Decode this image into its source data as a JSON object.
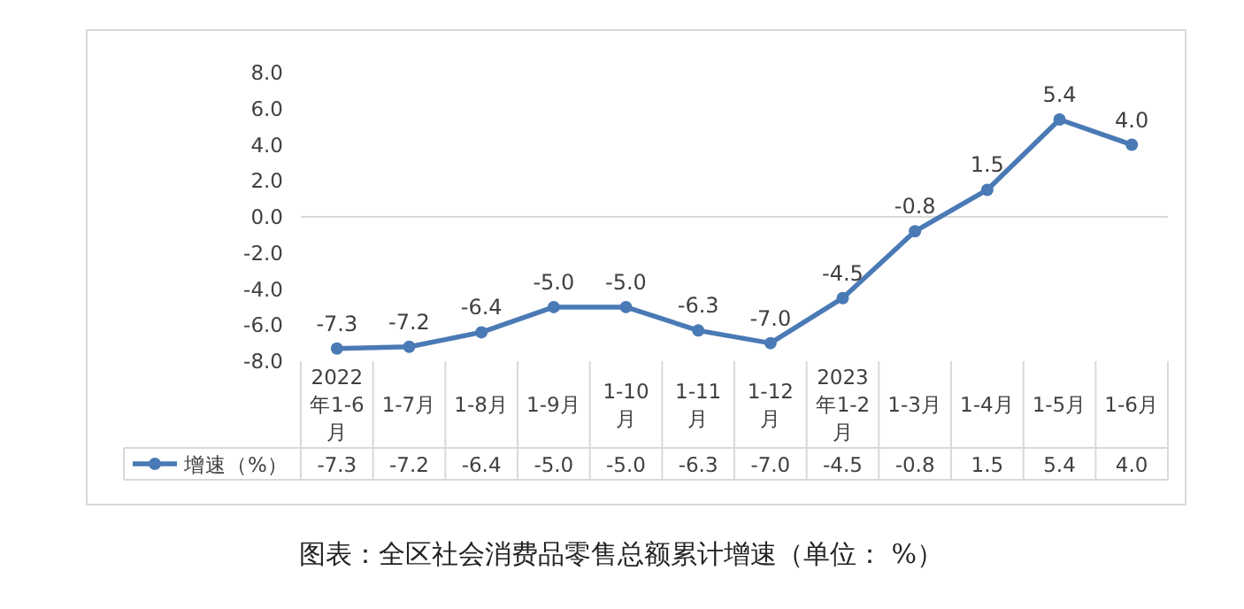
{
  "chart_data": {
    "type": "line",
    "categories": [
      "2022年1-6月",
      "1-7月",
      "1-8月",
      "1-9月",
      "1-10月",
      "1-11月",
      "1-12月",
      "2023年1-2月",
      "1-3月",
      "1-4月",
      "1-5月",
      "1-6月"
    ],
    "series": [
      {
        "name": "增速（%）",
        "color": "#4a7ab5",
        "values": [
          -7.3,
          -7.2,
          -6.4,
          -5.0,
          -5.0,
          -6.3,
          -7.0,
          -4.5,
          -0.8,
          1.5,
          5.4,
          4.0
        ],
        "value_labels": [
          "-7.3",
          "-7.2",
          "-6.4",
          "-5.0",
          "-5.0",
          "-6.3",
          "-7.0",
          "-4.5",
          "-0.8",
          "1.5",
          "5.4",
          "4.0"
        ]
      }
    ],
    "ylim": [
      -8,
      8
    ],
    "yticks": [
      {
        "value": 8,
        "label": "8.0"
      },
      {
        "value": 6,
        "label": "6.0"
      },
      {
        "value": 4,
        "label": "4.0"
      },
      {
        "value": 2,
        "label": "2.0"
      },
      {
        "value": 0,
        "label": "0.0"
      },
      {
        "value": -2,
        "label": "-2.0"
      },
      {
        "value": -4,
        "label": "-4.0"
      },
      {
        "value": -6,
        "label": "-6.0"
      },
      {
        "value": -8,
        "label": "-8.0"
      }
    ],
    "grid": false,
    "ref_lines": [
      {
        "axis": "y",
        "value": 0,
        "color": "#d9d9d9"
      }
    ],
    "legend": "bottom left",
    "marker": "circle",
    "line_style": "solid",
    "annotations": [
      "图表：全区社会消费品零售总额累计增速（单位： %）"
    ]
  }
}
